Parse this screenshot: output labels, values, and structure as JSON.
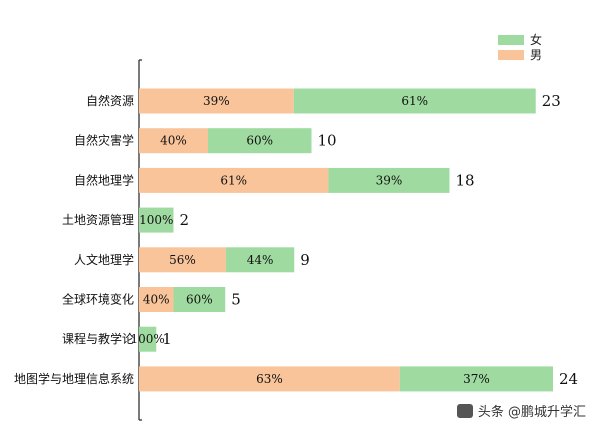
{
  "chart_data": {
    "type": "bar",
    "orientation": "horizontal",
    "stacked": true,
    "normalized": false,
    "categories": [
      "自然资源",
      "自然灾害学",
      "自然地理学",
      "土地资源管理",
      "人文地理学",
      "全球环境变化",
      "课程与教学论",
      "地图学与地理信息系统"
    ],
    "totals": [
      23,
      10,
      18,
      2,
      9,
      5,
      1,
      24
    ],
    "series": [
      {
        "name": "男",
        "color": "#f9c49a",
        "percent": [
          39,
          40,
          61,
          0,
          56,
          40,
          0,
          63
        ]
      },
      {
        "name": "女",
        "color": "#9fdba0",
        "percent": [
          61,
          60,
          39,
          100,
          44,
          60,
          100,
          37
        ]
      }
    ],
    "segment_labels": [
      [
        "39%",
        "61%"
      ],
      [
        "40%",
        "60%"
      ],
      [
        "61%",
        "39%"
      ],
      [
        "",
        "100%"
      ],
      [
        "56%",
        "44%"
      ],
      [
        "40%",
        "60%"
      ],
      [
        "",
        "100%"
      ],
      [
        "63%",
        "37%"
      ]
    ],
    "xlim": [
      0,
      24
    ],
    "legend": {
      "position": "top-right",
      "entries": [
        "女",
        "男"
      ]
    },
    "grid": false
  },
  "watermark": {
    "text": "头条 @鹏城升学汇"
  }
}
